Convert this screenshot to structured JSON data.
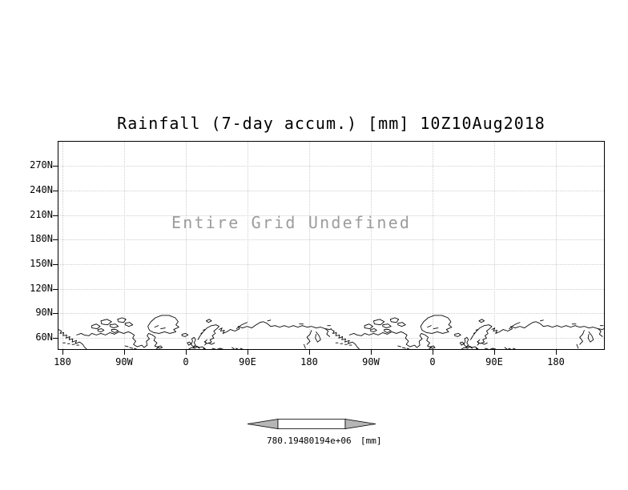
{
  "title": "Rainfall (7-day accum.) [mm] 10Z10Aug2018",
  "plot": {
    "undefined_text": "Entire Grid Undefined",
    "y_tick_labels": [
      "270N",
      "240N",
      "210N",
      "180N",
      "150N",
      "120N",
      "90N",
      "60N"
    ],
    "x_tick_labels": [
      "180",
      "90W",
      "0",
      "90E",
      "180",
      "90W",
      "0",
      "90E",
      "180"
    ]
  },
  "colorbar": {
    "left_label": "780.194",
    "right_label": "80194e+06",
    "unit": "[mm]"
  },
  "colors": {
    "frame": "#000000",
    "grid_dots": "#cfcfcf",
    "undefined_text": "#9c9c9c",
    "colorbar_arrow": "#b6b6b6",
    "colorbar_box": "#ffffff"
  },
  "chart_data": {
    "type": "heatmap",
    "title": "Rainfall (7-day accum.) [mm] 10Z10Aug2018",
    "status_annotation": "Entire Grid Undefined",
    "values": null,
    "x_axis": {
      "label": "",
      "tick_labels": [
        "180",
        "90W",
        "0",
        "90E",
        "180",
        "90W",
        "0",
        "90E",
        "180"
      ]
    },
    "y_axis": {
      "label": "",
      "tick_labels": [
        "270N",
        "240N",
        "210N",
        "180N",
        "150N",
        "120N",
        "90N",
        "60N"
      ]
    },
    "colorbar_tick_labels": [
      "780.194",
      "80194e+06"
    ],
    "colorbar_unit": "[mm]",
    "grid": "dotted",
    "legend": "none",
    "basemap": "world coastlines repeated twice along x"
  }
}
